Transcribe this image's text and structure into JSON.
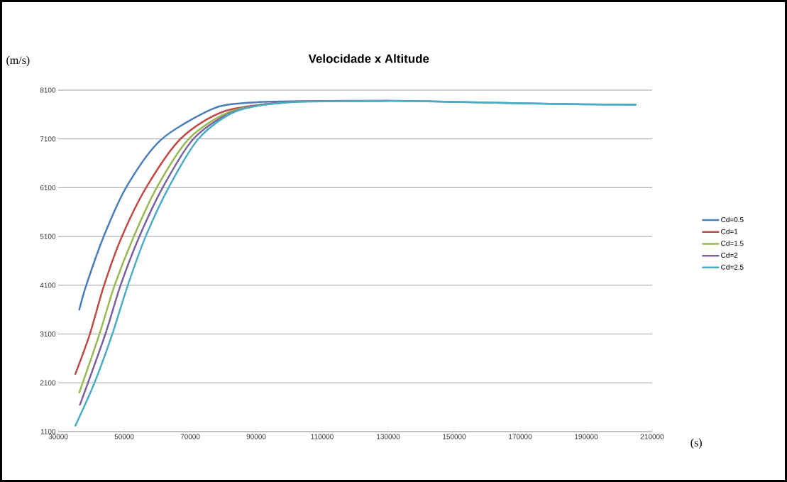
{
  "chart_data": {
    "type": "line",
    "title": "Velocidade x Altitude",
    "xlabel": "(s)",
    "ylabel": "(m/s)",
    "xlim": [
      30000,
      210000
    ],
    "ylim": [
      1100,
      8100
    ],
    "xticks": [
      30000,
      50000,
      70000,
      90000,
      110000,
      130000,
      150000,
      170000,
      190000,
      210000
    ],
    "yticks": [
      1100,
      2100,
      3100,
      4100,
      5100,
      6100,
      7100,
      8100
    ],
    "grid": "y",
    "legend": "right",
    "series": [
      {
        "name": "Cd=0.5",
        "color": "#4a7ebb",
        "x": [
          36400,
          38500,
          43900,
          50700,
          61100,
          76900,
          87600,
          100000,
          130000,
          150000,
          170000,
          190000,
          205000
        ],
        "values": [
          3600,
          4100,
          5120,
          6120,
          7080,
          7720,
          7840,
          7870,
          7880,
          7860,
          7830,
          7810,
          7800
        ]
      },
      {
        "name": "Cd=1",
        "color": "#be4b48",
        "x": [
          35200,
          39600,
          43900,
          49300,
          56800,
          67200,
          80500,
          100000
        ],
        "values": [
          2280,
          3100,
          4100,
          5100,
          6120,
          7110,
          7670,
          7860
        ]
      },
      {
        "name": "Cd=1.5",
        "color": "#98b954",
        "x": [
          36400,
          42500,
          47100,
          52900,
          60000,
          69700,
          82600,
          100000
        ],
        "values": [
          1900,
          3100,
          4100,
          5100,
          6120,
          7110,
          7670,
          7860
        ]
      },
      {
        "name": "Cd=2",
        "color": "#7d60a0",
        "x": [
          36600,
          44300,
          48900,
          54600,
          61800,
          71100,
          83300,
          100000,
          130000
        ],
        "values": [
          1650,
          3100,
          4100,
          5100,
          6120,
          7110,
          7660,
          7860,
          7880
        ]
      },
      {
        "name": "Cd=2.5",
        "color": "#4bacc6",
        "x": [
          35200,
          41000,
          46400,
          51100,
          56500,
          63600,
          72600,
          84000,
          100000,
          130000,
          150000,
          170000,
          190000,
          205000
        ],
        "values": [
          1220,
          2100,
          3100,
          4100,
          5100,
          6120,
          7110,
          7670,
          7850,
          7880,
          7860,
          7830,
          7810,
          7800
        ]
      }
    ]
  }
}
